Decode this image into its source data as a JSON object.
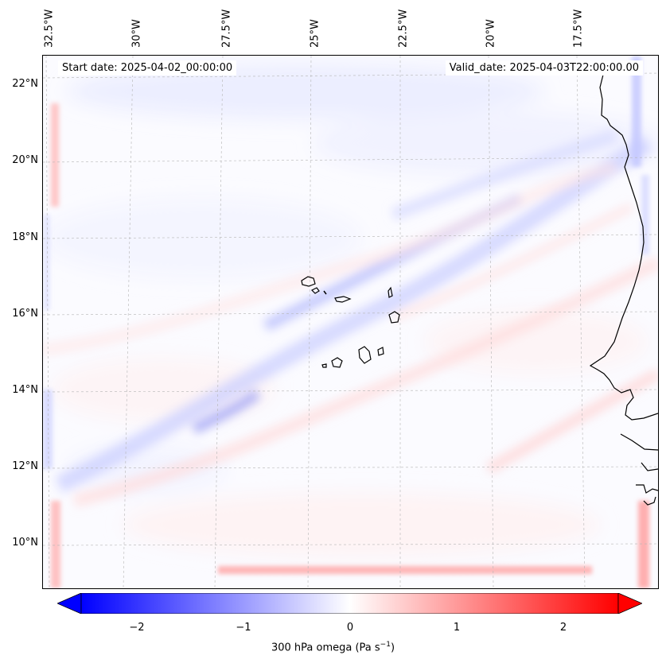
{
  "map": {
    "start_label": "Start date: 2025-04-02_00:00:00",
    "valid_label": "Valid_date: 2025-04-03T22:00:00.00",
    "lon_labels": [
      "32.5°W",
      "30°W",
      "27.5°W",
      "25°W",
      "22.5°W",
      "20°W",
      "17.5°W"
    ],
    "lat_labels": [
      "22°N",
      "20°N",
      "18°N",
      "16°N",
      "14°N",
      "12°N",
      "10°N"
    ],
    "field": "300 hPa omega"
  },
  "colorbar": {
    "label_text": "300 hPa omega (Pa s",
    "label_exp": "−1",
    "label_close": ")",
    "ticks": [
      "−2",
      "−1",
      "0",
      "1",
      "2"
    ],
    "range": [
      -2.6,
      2.6
    ],
    "extend": "both",
    "cmap": "bwr",
    "colors": {
      "low": "#0000ff",
      "mid": "#ffffff",
      "high": "#ff0000"
    }
  }
}
